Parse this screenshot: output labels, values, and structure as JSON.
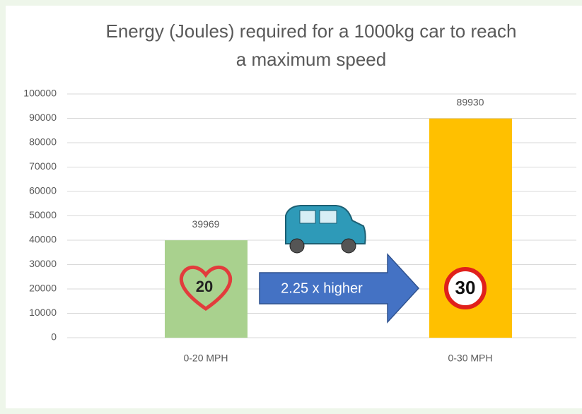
{
  "chart_data": {
    "type": "bar",
    "title": "Energy (Joules) required for a 1000kg car to reach",
    "subtitle": "a maximum speed",
    "categories": [
      "0-20 MPH",
      "0-30 MPH"
    ],
    "values": [
      39969,
      89930
    ],
    "colors": [
      "#a9d18e",
      "#ffc000"
    ],
    "ylim": [
      0,
      100000
    ],
    "yticks": [
      0,
      10000,
      20000,
      30000,
      40000,
      50000,
      60000,
      70000,
      80000,
      90000,
      100000
    ],
    "grid": true,
    "annotations": [
      "2.25 x higher",
      "20",
      "30"
    ]
  }
}
